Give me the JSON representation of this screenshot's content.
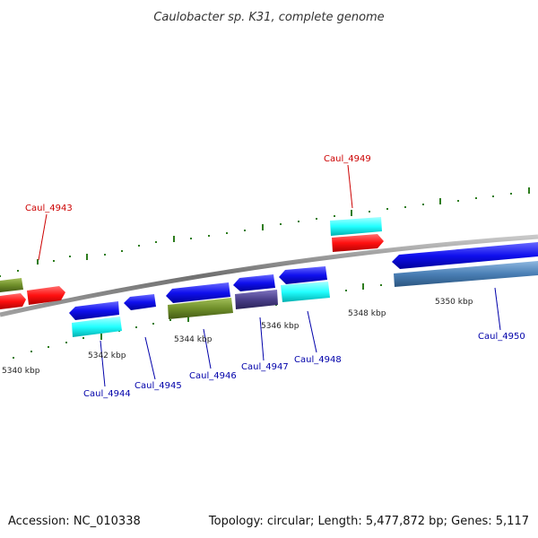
{
  "title": "Caulobacter sp. K31, complete genome",
  "footer": {
    "accession": "Accession: NC_010338",
    "info": "Topology: circular; Length: 5,477,872 bp; Genes: 5,117"
  },
  "scale_labels": [
    "5340 kbp",
    "5342 kbp",
    "5344 kbp",
    "5346 kbp",
    "5348 kbp",
    "5350 kbp"
  ],
  "gene_labels": {
    "forward": [
      "Caul_4943",
      "Caul_4949"
    ],
    "reverse": [
      "Caul_4944",
      "Caul_4945",
      "Caul_4946",
      "Caul_4947",
      "Caul_4948",
      "Caul_4950"
    ]
  },
  "colors": {
    "forward_label": "#cc0000",
    "reverse_label": "#0000aa",
    "backbone": "#8c8c8c",
    "tick": "#2e7d1e",
    "red": "#ff1010",
    "blue": "#1010ee",
    "cyan": "#22ffff",
    "olive": "#6f8f2a",
    "purple": "#4a3f8a",
    "steel": "#4a7fb5"
  }
}
